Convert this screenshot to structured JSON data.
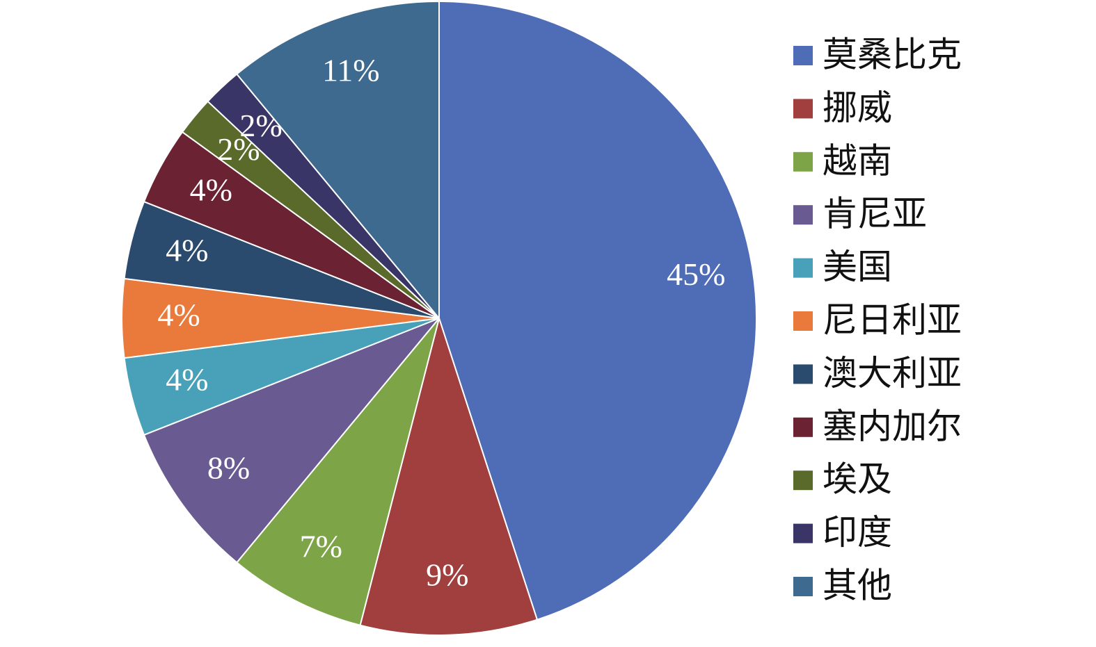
{
  "chart_data": {
    "type": "pie",
    "categories": [
      "莫桑比克",
      "挪威",
      "越南",
      "肯尼亚",
      "美国",
      "尼日利亚",
      "澳大利亚",
      "塞内加尔",
      "埃及",
      "印度",
      "其他"
    ],
    "values": [
      45,
      9,
      7,
      8,
      4,
      4,
      4,
      4,
      2,
      2,
      11
    ],
    "value_labels": [
      "45%",
      "9%",
      "7%",
      "8%",
      "4%",
      "4%",
      "4%",
      "4%",
      "2%",
      "2%",
      "11%"
    ],
    "colors": [
      "#4e6db6",
      "#a03f3e",
      "#7da548",
      "#695b92",
      "#48a1b8",
      "#ea7a3c",
      "#2a4a6e",
      "#6b2232",
      "#596a2b",
      "#393566",
      "#3d6a8e"
    ],
    "legend": "right"
  }
}
